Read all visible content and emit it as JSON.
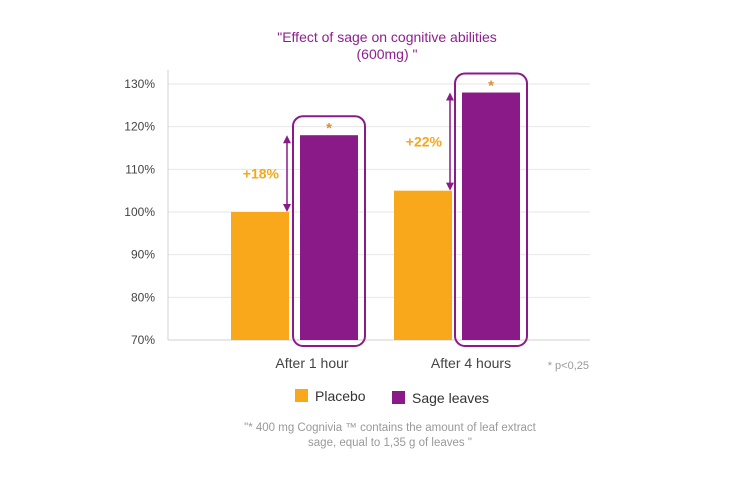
{
  "chart_data": {
    "type": "bar",
    "title": [
      "\"Effect of sage on cognitive abilities",
      "(600mg) \""
    ],
    "categories": [
      "After 1 hour",
      "After 4 hours"
    ],
    "series": [
      {
        "name": "Placebo",
        "values": [
          100,
          105
        ],
        "color": "#f9a81c"
      },
      {
        "name": "Sage leaves",
        "values": [
          118,
          128
        ],
        "color": "#8b1a89"
      }
    ],
    "ylim": [
      70,
      130
    ],
    "yticks": [
      70,
      80,
      90,
      100,
      110,
      120,
      130
    ],
    "ytick_labels": [
      "70%",
      "80%",
      "90%",
      "100%",
      "110%",
      "120%",
      "130%"
    ],
    "annotations": {
      "deltas": [
        "+18%",
        "+22%"
      ],
      "significance_marker": "*",
      "p_note": "* p<0,25"
    },
    "legend": {
      "position": "bottom"
    },
    "grid": true,
    "footnote": [
      "\"* 400 mg Cognivia ™ contains the amount of leaf extract",
      "sage, equal to 1,35 g of leaves \""
    ],
    "colors": {
      "accent": "#8b1a89",
      "placebo": "#f9a81c",
      "delta": "#f4a81d",
      "grid": "#e6e6e6"
    }
  }
}
